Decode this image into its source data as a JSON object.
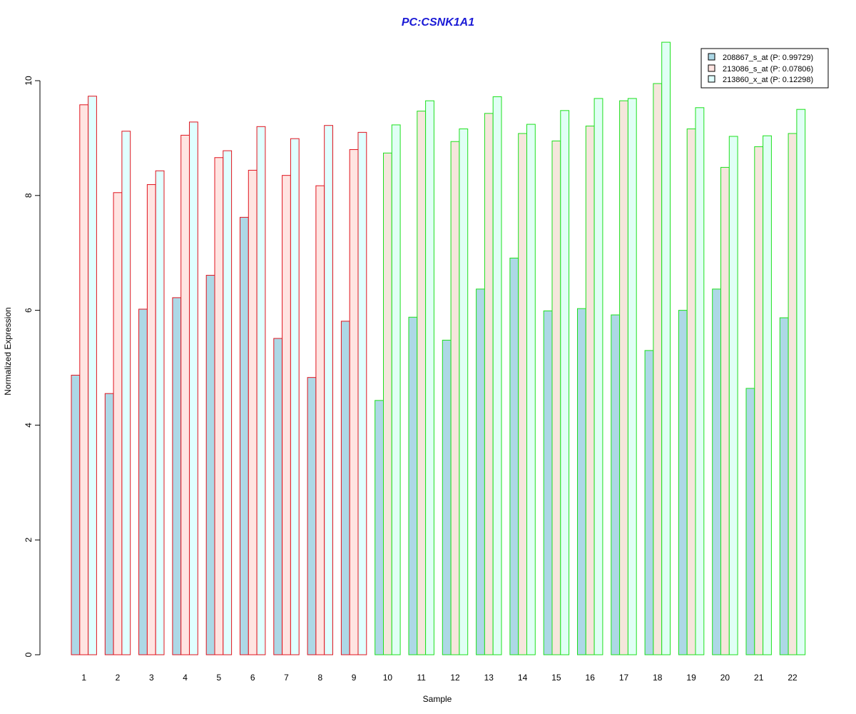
{
  "chart_data": {
    "type": "bar",
    "title": "PC:CSNK1A1",
    "xlabel": "Sample",
    "ylabel": "Normalized Expression",
    "ylim": [
      0,
      10.7
    ],
    "yticks": [
      "0",
      "2",
      "4",
      "6",
      "8",
      "10"
    ],
    "grid": false,
    "legend_position": "top-right",
    "categories": [
      "1",
      "2",
      "3",
      "4",
      "5",
      "6",
      "7",
      "8",
      "9",
      "10",
      "11",
      "12",
      "13",
      "14",
      "15",
      "16",
      "17",
      "18",
      "19",
      "20",
      "21",
      "22"
    ],
    "group_border_colors": {
      "first_group_samples": 9,
      "first_group_color": "#e0141e",
      "second_group_color": "#1ee01e"
    },
    "series": [
      {
        "name": "208867_s_at (P: 0.99729)",
        "fill": "#add8e6",
        "values": [
          4.87,
          4.55,
          6.02,
          6.22,
          6.61,
          7.62,
          5.51,
          4.83,
          5.81,
          4.43,
          5.88,
          5.48,
          6.37,
          6.91,
          5.99,
          6.03,
          5.92,
          5.3,
          6.0,
          6.37,
          4.64,
          5.87
        ]
      },
      {
        "name": "213086_s_at (P: 0.07806)",
        "fill_group1": "#ffe4e1",
        "fill_group2": "#f5e6dc",
        "fill": "#ffe4e1",
        "values": [
          9.58,
          8.05,
          8.19,
          9.05,
          8.66,
          8.44,
          8.35,
          8.17,
          8.8,
          8.74,
          9.47,
          8.94,
          9.43,
          9.08,
          8.95,
          9.21,
          9.65,
          9.95,
          9.16,
          8.49,
          8.85,
          9.08
        ]
      },
      {
        "name": "213860_x_at (P: 0.12298)",
        "fill": "#e0ffff",
        "fill_group1": "#e0ffff",
        "fill_group2": "#e0fff5",
        "values": [
          9.73,
          9.12,
          8.43,
          9.28,
          8.78,
          9.2,
          8.99,
          9.22,
          9.1,
          9.23,
          9.65,
          9.16,
          9.72,
          9.24,
          9.48,
          9.69,
          9.69,
          10.67,
          9.53,
          9.03,
          9.04,
          9.5
        ]
      }
    ]
  }
}
